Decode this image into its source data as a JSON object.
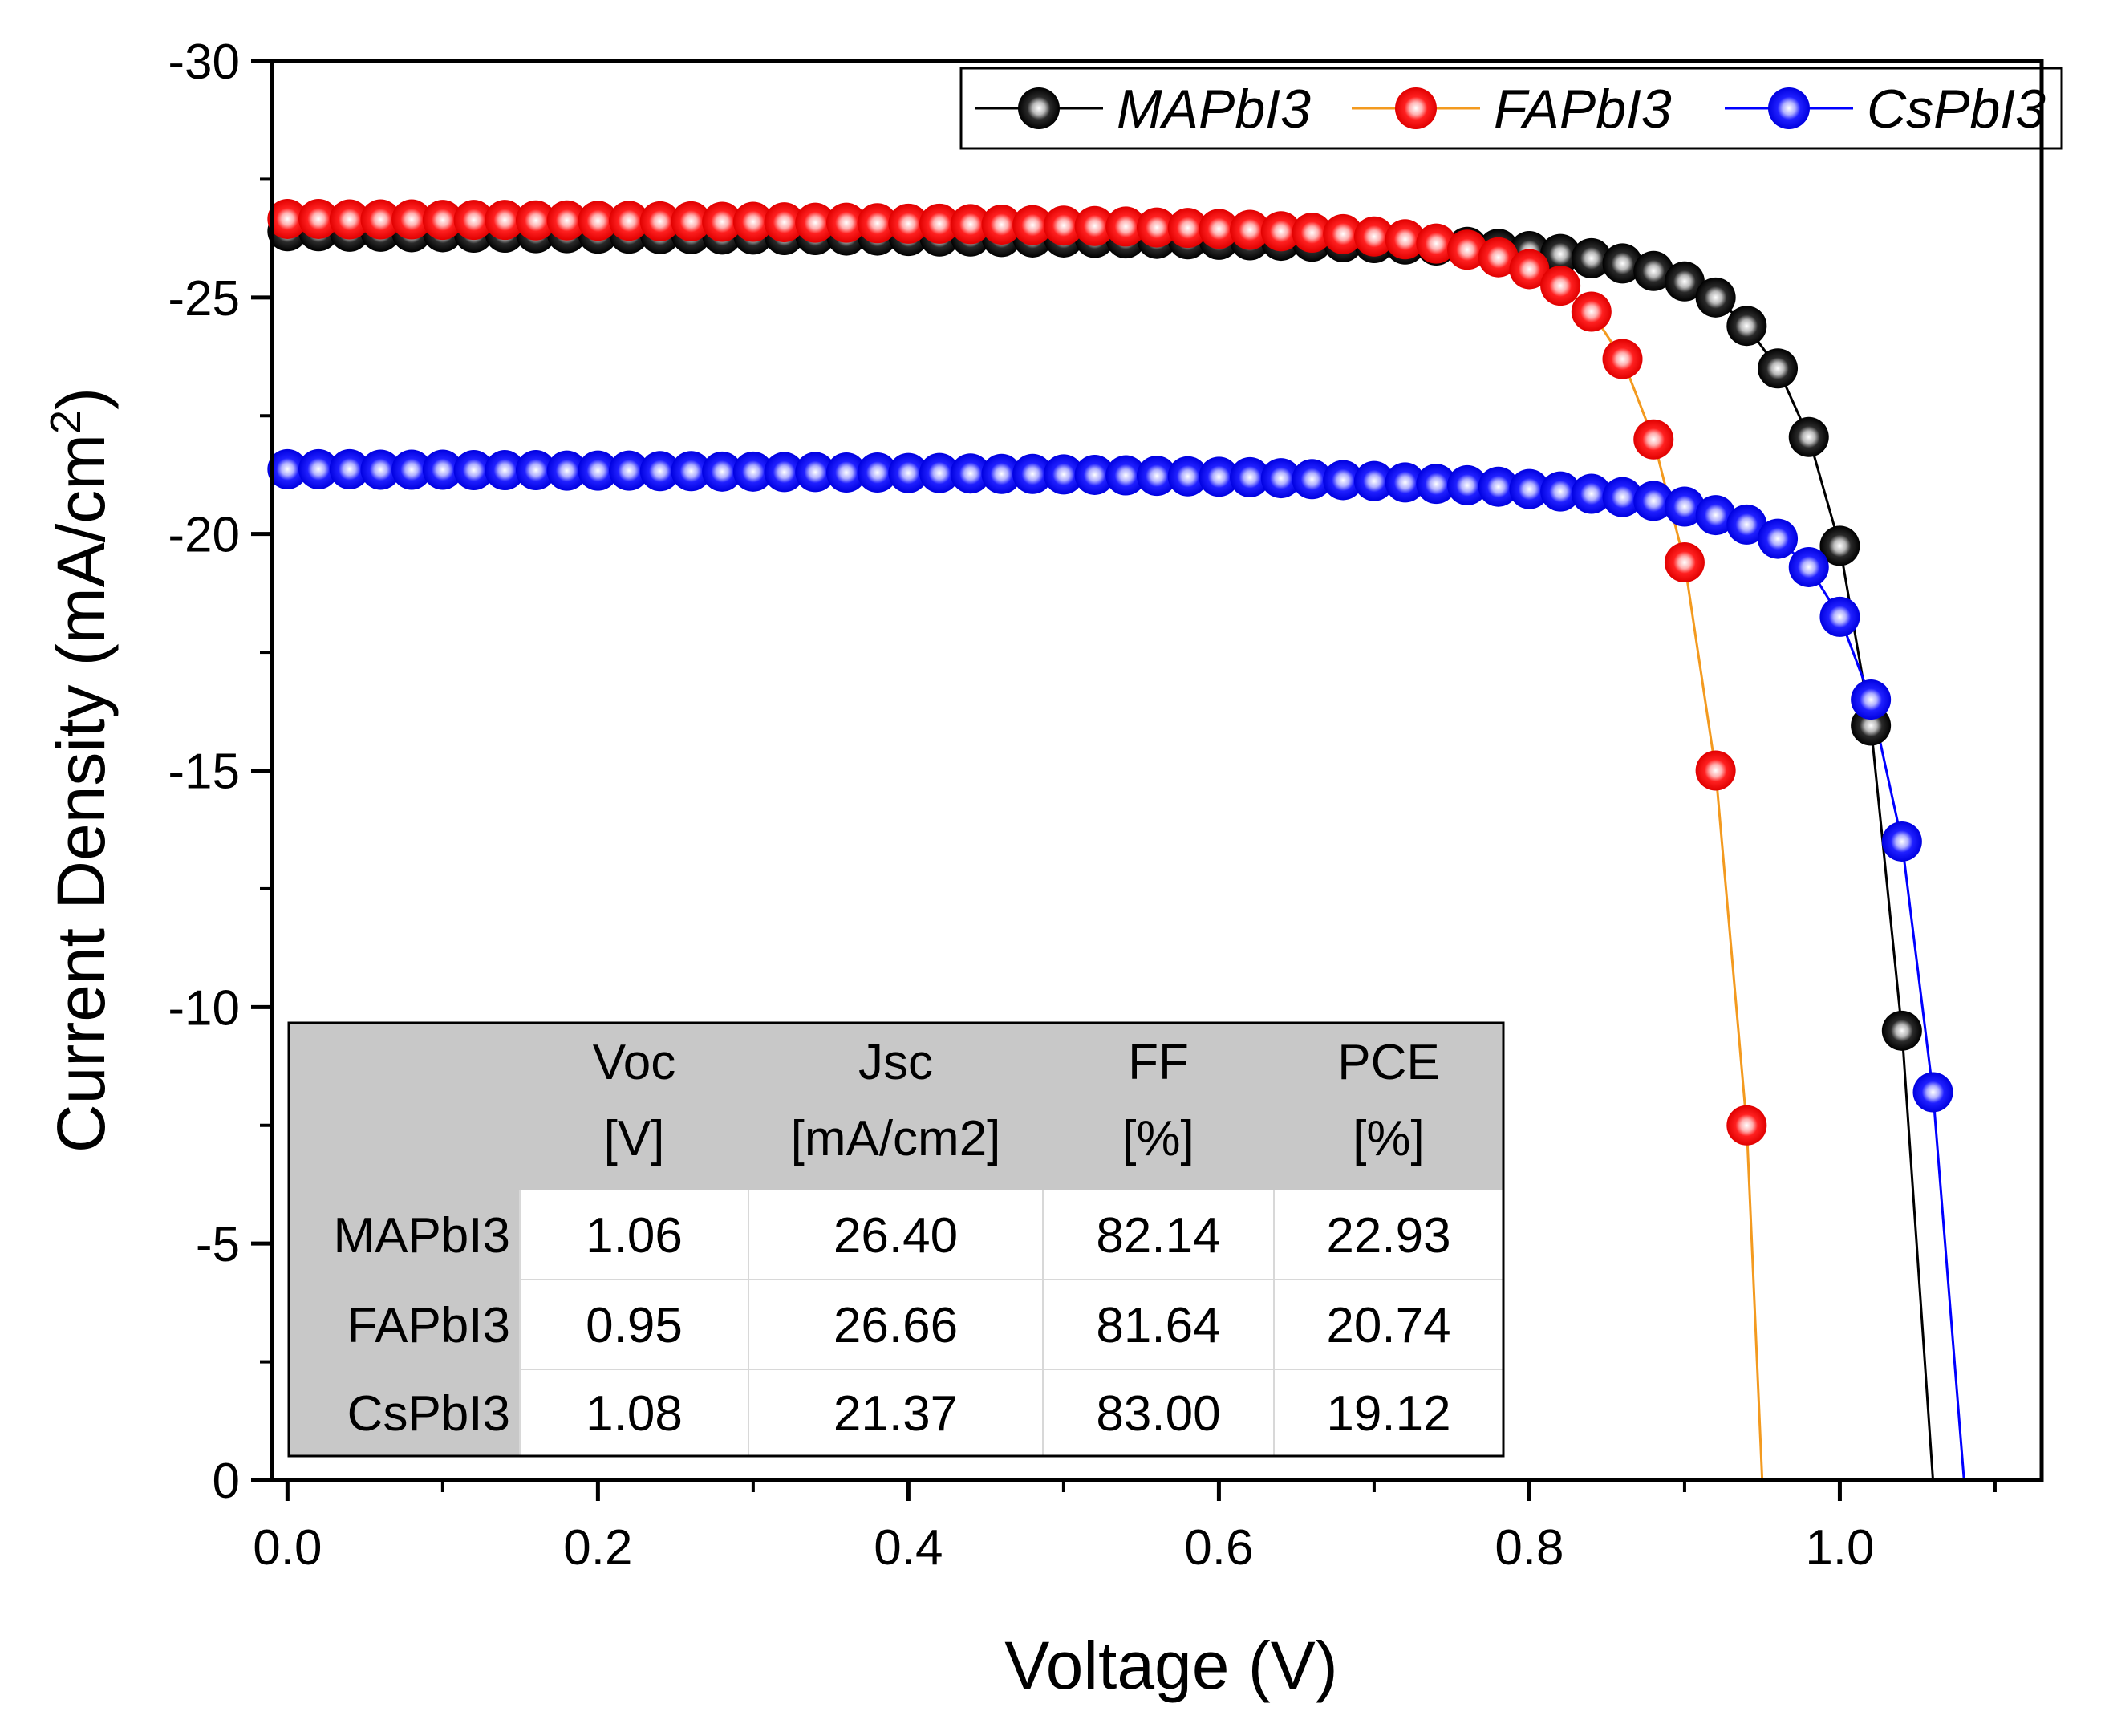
{
  "chart_data": {
    "type": "scatter",
    "xlabel": "Voltage (V)",
    "ylabel": {
      "main": "Current Density (mA/cm",
      "sup": "2",
      "close": ")"
    },
    "xlim": [
      -0.01,
      1.13
    ],
    "ylim": [
      0,
      -30
    ],
    "x_ticks": [
      0.0,
      0.2,
      0.4,
      0.6,
      0.8,
      1.0
    ],
    "x_tick_labels": [
      "0.0",
      "0.2",
      "0.4",
      "0.6",
      "0.8",
      "1.0"
    ],
    "y_ticks": [
      -30,
      -25,
      -20,
      -15,
      -10,
      -5,
      0
    ],
    "y_tick_labels": [
      "-30",
      "-25",
      "-20",
      "-15",
      "-10",
      "-5",
      "0"
    ],
    "grid": false,
    "legend_position": "top-right",
    "series": [
      {
        "name": "MAPbI3",
        "color": "#000000",
        "line_color": "#000000",
        "x": [
          0.0,
          0.02,
          0.04,
          0.06,
          0.08,
          0.1,
          0.12,
          0.14,
          0.16,
          0.18,
          0.2,
          0.22,
          0.24,
          0.26,
          0.28,
          0.3,
          0.32,
          0.34,
          0.36,
          0.38,
          0.4,
          0.42,
          0.44,
          0.46,
          0.48,
          0.5,
          0.52,
          0.54,
          0.56,
          0.58,
          0.6,
          0.62,
          0.64,
          0.66,
          0.68,
          0.7,
          0.72,
          0.74,
          0.76,
          0.78,
          0.8,
          0.82,
          0.84,
          0.86,
          0.88,
          0.9,
          0.92,
          0.94,
          0.96,
          0.98,
          1.0,
          1.02,
          1.04
        ],
        "y": [
          -26.4,
          -26.4,
          -26.39,
          -26.39,
          -26.38,
          -26.38,
          -26.37,
          -26.37,
          -26.36,
          -26.36,
          -26.35,
          -26.35,
          -26.34,
          -26.34,
          -26.33,
          -26.33,
          -26.32,
          -26.32,
          -26.31,
          -26.31,
          -26.3,
          -26.29,
          -26.29,
          -26.28,
          -26.27,
          -26.27,
          -26.26,
          -26.25,
          -26.24,
          -26.23,
          -26.22,
          -26.21,
          -26.2,
          -26.18,
          -26.17,
          -26.15,
          -26.12,
          -26.1,
          -26.07,
          -26.03,
          -25.98,
          -25.92,
          -25.83,
          -25.72,
          -25.56,
          -25.34,
          -25.0,
          -24.4,
          -23.5,
          -22.05,
          -19.75,
          -15.95,
          -9.5
        ],
        "curve_end": {
          "x": 1.06,
          "y": 0
        }
      },
      {
        "name": "FAPbI3",
        "color": "#ff0000",
        "line_color": "#f39a1f",
        "x": [
          0.0,
          0.02,
          0.04,
          0.06,
          0.08,
          0.1,
          0.12,
          0.14,
          0.16,
          0.18,
          0.2,
          0.22,
          0.24,
          0.26,
          0.28,
          0.3,
          0.32,
          0.34,
          0.36,
          0.38,
          0.4,
          0.42,
          0.44,
          0.46,
          0.48,
          0.5,
          0.52,
          0.54,
          0.56,
          0.58,
          0.6,
          0.62,
          0.64,
          0.66,
          0.68,
          0.7,
          0.72,
          0.74,
          0.76,
          0.78,
          0.8,
          0.82,
          0.84,
          0.86,
          0.88,
          0.9,
          0.92,
          0.94
        ],
        "y": [
          -26.66,
          -26.66,
          -26.65,
          -26.65,
          -26.65,
          -26.64,
          -26.64,
          -26.64,
          -26.63,
          -26.63,
          -26.62,
          -26.62,
          -26.61,
          -26.61,
          -26.6,
          -26.6,
          -26.59,
          -26.58,
          -26.58,
          -26.57,
          -26.56,
          -26.56,
          -26.55,
          -26.54,
          -26.53,
          -26.52,
          -26.51,
          -26.5,
          -26.48,
          -26.47,
          -26.45,
          -26.43,
          -26.4,
          -26.37,
          -26.34,
          -26.29,
          -26.23,
          -26.14,
          -26.01,
          -25.85,
          -25.6,
          -25.25,
          -24.7,
          -23.7,
          -22.0,
          -19.4,
          -15.0,
          -7.5
        ],
        "curve_end": {
          "x": 0.95,
          "y": 0
        }
      },
      {
        "name": "CsPbI3",
        "color": "#0000ff",
        "line_color": "#0000ff",
        "x": [
          0.0,
          0.02,
          0.04,
          0.06,
          0.08,
          0.1,
          0.12,
          0.14,
          0.16,
          0.18,
          0.2,
          0.22,
          0.24,
          0.26,
          0.28,
          0.3,
          0.32,
          0.34,
          0.36,
          0.38,
          0.4,
          0.42,
          0.44,
          0.46,
          0.48,
          0.5,
          0.52,
          0.54,
          0.56,
          0.58,
          0.6,
          0.62,
          0.64,
          0.66,
          0.68,
          0.7,
          0.72,
          0.74,
          0.76,
          0.78,
          0.8,
          0.82,
          0.84,
          0.86,
          0.88,
          0.9,
          0.92,
          0.94,
          0.96,
          0.98,
          1.0,
          1.02,
          1.04,
          1.06
        ],
        "y": [
          -21.37,
          -21.37,
          -21.37,
          -21.36,
          -21.36,
          -21.36,
          -21.35,
          -21.35,
          -21.35,
          -21.34,
          -21.34,
          -21.34,
          -21.33,
          -21.33,
          -21.32,
          -21.32,
          -21.31,
          -21.31,
          -21.3,
          -21.3,
          -21.29,
          -21.29,
          -21.28,
          -21.27,
          -21.27,
          -21.26,
          -21.25,
          -21.24,
          -21.23,
          -21.22,
          -21.21,
          -21.2,
          -21.18,
          -21.16,
          -21.14,
          -21.12,
          -21.09,
          -21.06,
          -21.03,
          -21.0,
          -20.95,
          -20.9,
          -20.85,
          -20.78,
          -20.7,
          -20.58,
          -20.4,
          -20.2,
          -19.9,
          -19.3,
          -18.25,
          -16.5,
          -13.5,
          -8.2
        ],
        "curve_end": {
          "x": 1.08,
          "y": 0
        }
      }
    ],
    "table": {
      "headers": [
        [
          "",
          ""
        ],
        [
          "Voc",
          "[V]"
        ],
        [
          "Jsc",
          "[mA/cm2]"
        ],
        [
          "FF",
          "[%]"
        ],
        [
          "PCE",
          "[%]"
        ]
      ],
      "rows": [
        [
          "MAPbI3",
          "1.06",
          "26.40",
          "82.14",
          "22.93"
        ],
        [
          "FAPbI3",
          "0.95",
          "26.66",
          "81.64",
          "20.74"
        ],
        [
          "CsPbI3",
          "1.08",
          "21.37",
          "83.00",
          "19.12"
        ]
      ],
      "header_bg": "#c8c8c8"
    }
  }
}
